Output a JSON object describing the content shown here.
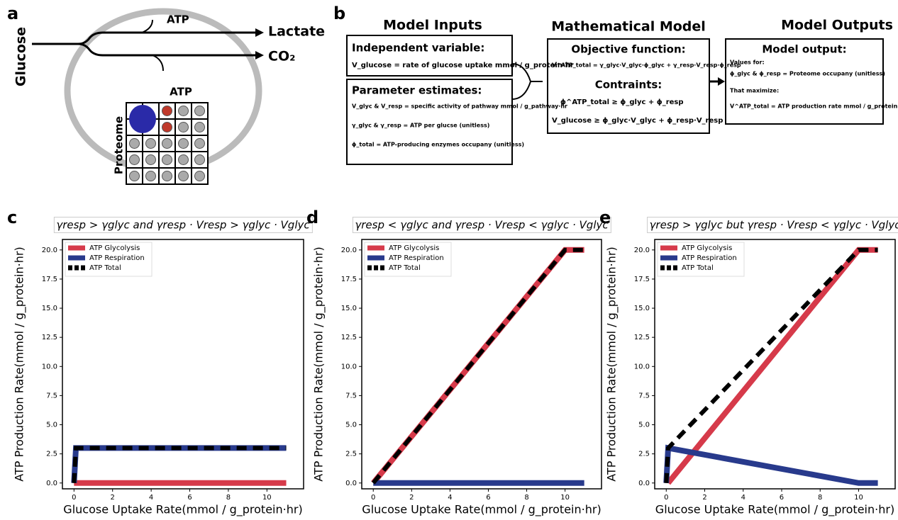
{
  "panel_a": {
    "label": "a",
    "glucose": "Glucose",
    "atp_top": "ATP",
    "atp_bottom": "ATP",
    "lactate": "Lactate",
    "co2": "CO₂",
    "proteome": "Proteome"
  },
  "panel_b": {
    "label": "b",
    "inputs": {
      "title": "Model Inputs",
      "independent_title": "Independent variable:",
      "independent_text": "V_glucose = rate of glucose uptake  mmol / g_protein·hr",
      "parameter_title": "Parameter estimates:",
      "parameter_lines": [
        "V_glyc & V_resp = specific activity of pathway  mmol / g_pathway·hr",
        "γ_glyc & γ_resp = ATP per glucse (unitless)",
        "ϕ_total = ATP-producing enzymes occupany (unitless)"
      ]
    },
    "model": {
      "title": "Mathematical Model",
      "objective_title": "Objective function:",
      "objective_text": "V^ATP_total = γ_glyc·V_glyc·ϕ_glyc + γ_resp·V_resp·ϕ_resp",
      "constraints_title": "Contraints:",
      "constraint_lines": [
        "ϕ^ATP_total ≥ ϕ_glyc + ϕ_resp",
        "V_glucose ≥ ϕ_glyc·V_glyc + ϕ_resp·V_resp"
      ]
    },
    "outputs": {
      "title": "Model Outputs",
      "box_title": "Model output:",
      "values_for": "Values for:",
      "values_text": "ϕ_glyc & ϕ_resp = Proteome occupany (unitless)",
      "maximize": "That maximize:",
      "maximize_text": "V^ATP_total = ATP production rate  mmol / g_protein·hr"
    }
  },
  "chart_data": [
    {
      "type": "line",
      "panel": "c",
      "title": "γresp > γglyc and γresp · Vresp > γglyc · Vglyc",
      "xlabel": "Glucose Uptake Rate(mmol / g_protein·hr)",
      "ylabel": "ATP Production Rate(mmol / g_protein·hr)",
      "xlim": [
        -0.6,
        11.9
      ],
      "ylim": [
        -0.5,
        20.9
      ],
      "xticks": [
        0,
        2,
        4,
        6,
        8,
        10
      ],
      "yticks": [
        {
          "value": 0,
          "label": "0.0"
        },
        {
          "value": 2.5,
          "label": "2.5"
        },
        {
          "value": 5,
          "label": "5.0"
        },
        {
          "value": 7.5,
          "label": "7.5"
        },
        {
          "value": 10,
          "label": "10.0"
        },
        {
          "value": 12.5,
          "label": "12.5"
        },
        {
          "value": 15,
          "label": "15.0"
        },
        {
          "value": 17.5,
          "label": "17.5"
        },
        {
          "value": 20,
          "label": "20.0"
        }
      ],
      "legend": "upper left",
      "series": [
        {
          "name": "ATP Glycolysis",
          "color": "#d63a4a",
          "x": [
            0,
            11
          ],
          "values": [
            0,
            0
          ]
        },
        {
          "name": "ATP Respiration",
          "color": "#283a8c",
          "x": [
            0,
            0.1,
            11
          ],
          "values": [
            0,
            3,
            3
          ]
        },
        {
          "name": "ATP Total",
          "color": "#000000",
          "dashed": true,
          "x": [
            0,
            0.1,
            11
          ],
          "values": [
            0,
            3,
            3
          ]
        }
      ]
    },
    {
      "type": "line",
      "panel": "d",
      "title": "γresp < γglyc and γresp · Vresp < γglyc · Vglyc",
      "xlabel": "Glucose Uptake Rate(mmol / g_protein·hr)",
      "ylabel": "ATP Production Rate(mmol / g_protein·hr)",
      "xlim": [
        -0.6,
        11.9
      ],
      "ylim": [
        -0.5,
        20.9
      ],
      "xticks": [
        0,
        2,
        4,
        6,
        8,
        10
      ],
      "yticks": [
        {
          "value": 0,
          "label": "0.0"
        },
        {
          "value": 2.5,
          "label": "2.5"
        },
        {
          "value": 5,
          "label": "5.0"
        },
        {
          "value": 7.5,
          "label": "7.5"
        },
        {
          "value": 10,
          "label": "10.0"
        },
        {
          "value": 12.5,
          "label": "12.5"
        },
        {
          "value": 15,
          "label": "15.0"
        },
        {
          "value": 17.5,
          "label": "17.5"
        },
        {
          "value": 20,
          "label": "20.0"
        }
      ],
      "legend": "upper left",
      "series": [
        {
          "name": "ATP Glycolysis",
          "color": "#d63a4a",
          "x": [
            0,
            10,
            11
          ],
          "values": [
            0,
            20,
            20
          ]
        },
        {
          "name": "ATP Respiration",
          "color": "#283a8c",
          "x": [
            0,
            11
          ],
          "values": [
            0,
            0
          ]
        },
        {
          "name": "ATP Total",
          "color": "#000000",
          "dashed": true,
          "x": [
            0,
            10,
            11
          ],
          "values": [
            0,
            20,
            20
          ]
        }
      ]
    },
    {
      "type": "line",
      "panel": "e",
      "title": "γresp > γglyc but γresp · Vresp < γglyc · Vglyc",
      "xlabel": "Glucose Uptake Rate(mmol / g_protein·hr)",
      "ylabel": "ATP Production Rate(mmol / g_protein·hr)",
      "xlim": [
        -0.6,
        11.9
      ],
      "ylim": [
        -0.5,
        20.9
      ],
      "xticks": [
        0,
        2,
        4,
        6,
        8,
        10
      ],
      "yticks": [
        {
          "value": 0,
          "label": "0.0"
        },
        {
          "value": 2.5,
          "label": "2.5"
        },
        {
          "value": 5,
          "label": "5.0"
        },
        {
          "value": 7.5,
          "label": "7.5"
        },
        {
          "value": 10,
          "label": "10.0"
        },
        {
          "value": 12.5,
          "label": "12.5"
        },
        {
          "value": 15,
          "label": "15.0"
        },
        {
          "value": 17.5,
          "label": "17.5"
        },
        {
          "value": 20,
          "label": "20.0"
        }
      ],
      "legend": "upper left",
      "series": [
        {
          "name": "ATP Glycolysis",
          "color": "#d63a4a",
          "x": [
            0.1,
            10,
            11
          ],
          "values": [
            0,
            20,
            20
          ]
        },
        {
          "name": "ATP Respiration",
          "color": "#283a8c",
          "x": [
            0,
            0.1,
            10,
            11
          ],
          "values": [
            0,
            3,
            0,
            0
          ]
        },
        {
          "name": "ATP Total",
          "color": "#000000",
          "dashed": true,
          "x": [
            0,
            0.1,
            10,
            11
          ],
          "values": [
            0,
            3,
            20,
            20
          ]
        }
      ]
    }
  ]
}
